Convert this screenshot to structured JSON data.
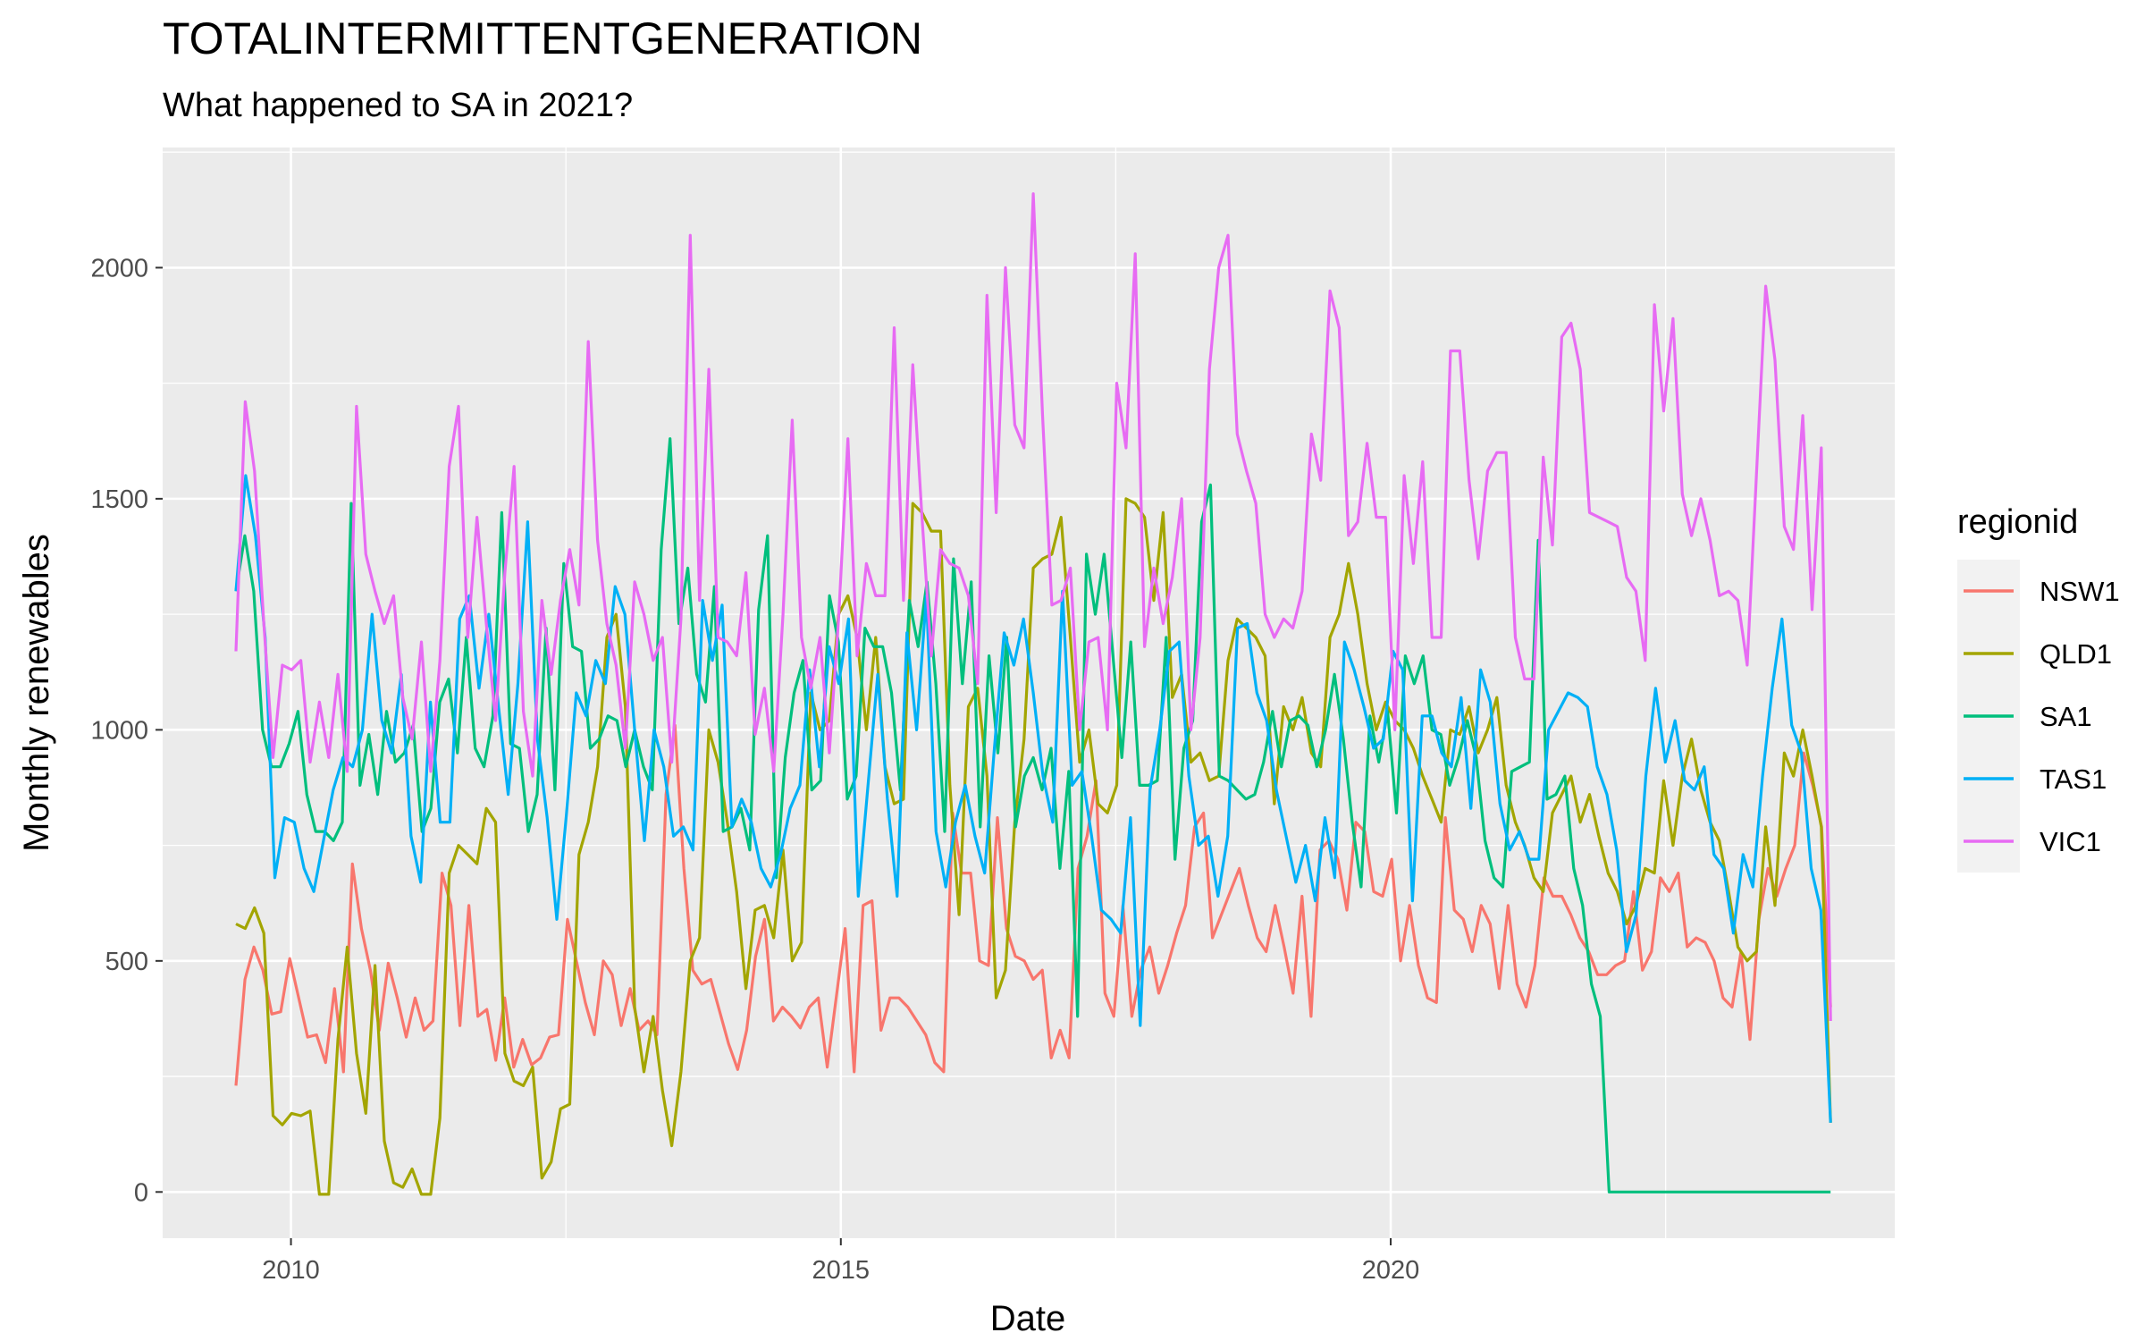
{
  "chart_data": {
    "type": "line",
    "title": "TOTALINTERMITTENTGENERATION",
    "subtitle": "What happened to SA in 2021?",
    "xlabel": "Date",
    "ylabel": "Monthly renewables",
    "xlim": [
      "2008-11",
      "2024-08"
    ],
    "ylim": [
      -100,
      2260
    ],
    "x_ticks": [
      {
        "value": "2010-01",
        "label": "2010"
      },
      {
        "value": "2015-01",
        "label": "2015"
      },
      {
        "value": "2020-01",
        "label": "2020"
      }
    ],
    "y_ticks": [
      0,
      500,
      1000,
      1500,
      2000
    ],
    "grid": true,
    "legend": {
      "title": "regionid",
      "position": "right"
    },
    "x_start": "2009-07",
    "x_end": "2024-01",
    "series": [
      {
        "name": "NSW1",
        "color": "#F8766D",
        "values": [
          230,
          460,
          530,
          480,
          385,
          390,
          505,
          420,
          335,
          340,
          280,
          440,
          260,
          710,
          570,
          480,
          350,
          495,
          420,
          335,
          420,
          350,
          370,
          690,
          620,
          360,
          620,
          380,
          395,
          285,
          420,
          270,
          330,
          275,
          290,
          335,
          340,
          590,
          500,
          410,
          340,
          500,
          470,
          360,
          440,
          350,
          370,
          340,
          860,
          1010,
          700,
          480,
          450,
          460,
          390,
          320,
          265,
          350,
          510,
          590,
          370,
          400,
          380,
          355,
          400,
          420,
          270,
          420,
          570,
          260,
          620,
          630,
          350,
          420,
          420,
          400,
          370,
          340,
          280,
          260,
          820,
          690,
          690,
          500,
          490,
          810,
          570,
          510,
          500,
          460,
          480,
          290,
          350,
          290,
          700,
          770,
          890,
          430,
          380,
          620,
          380,
          480,
          530,
          430,
          490,
          560,
          620,
          790,
          820,
          550,
          600,
          650,
          700,
          620,
          550,
          520,
          620,
          530,
          430,
          640,
          380,
          740,
          760,
          720,
          610,
          800,
          780,
          650,
          640,
          720,
          500,
          620,
          490,
          420,
          410,
          810,
          610,
          590,
          520,
          620,
          580,
          440,
          620,
          450,
          400,
          490,
          680,
          640,
          640,
          600,
          550,
          520,
          470,
          470,
          490,
          500,
          650,
          480,
          520,
          680,
          650,
          690,
          530,
          550,
          540,
          500,
          420,
          400,
          520,
          330,
          590,
          700,
          640,
          700,
          750,
          950,
          880,
          790,
          400
        ]
      },
      {
        "name": "QLD1",
        "color": "#A3A500",
        "values": [
          580,
          570,
          615,
          560,
          165,
          145,
          170,
          165,
          175,
          -5,
          -5,
          330,
          530,
          300,
          170,
          490,
          110,
          20,
          10,
          50,
          -5,
          -5,
          160,
          690,
          750,
          730,
          710,
          830,
          800,
          300,
          240,
          230,
          270,
          30,
          65,
          180,
          190,
          730,
          800,
          920,
          1200,
          1250,
          1050,
          400,
          260,
          380,
          220,
          100,
          260,
          500,
          550,
          1000,
          930,
          800,
          650,
          440,
          610,
          620,
          550,
          740,
          500,
          540,
          1080,
          1000,
          1020,
          1250,
          1290,
          1200,
          1000,
          1200,
          920,
          840,
          850,
          1490,
          1470,
          1430,
          1430,
          880,
          600,
          1050,
          1090,
          900,
          420,
          480,
          800,
          980,
          1350,
          1370,
          1380,
          1460,
          1200,
          930,
          1000,
          840,
          820,
          880,
          1500,
          1490,
          1460,
          1280,
          1470,
          1070,
          1120,
          930,
          950,
          890,
          900,
          1150,
          1240,
          1220,
          1200,
          1160,
          840,
          1050,
          1000,
          1070,
          950,
          920,
          1200,
          1250,
          1360,
          1250,
          1100,
          1000,
          1060,
          1020,
          1000,
          960,
          900,
          850,
          800,
          1000,
          990,
          1050,
          950,
          1000,
          1070,
          880,
          800,
          750,
          680,
          650,
          820,
          860,
          900,
          800,
          860,
          770,
          690,
          650,
          580,
          620,
          700,
          690,
          890,
          750,
          900,
          980,
          870,
          800,
          760,
          650,
          530,
          500,
          520,
          790,
          620,
          950,
          900,
          1000,
          900,
          790,
          150
        ]
      },
      {
        "name": "SA1",
        "color": "#00BF7D",
        "values": [
          1300,
          1420,
          1300,
          1000,
          920,
          920,
          970,
          1040,
          860,
          780,
          780,
          760,
          800,
          1490,
          880,
          990,
          860,
          1040,
          930,
          950,
          1010,
          780,
          830,
          1060,
          1110,
          950,
          1200,
          960,
          920,
          1030,
          1470,
          970,
          960,
          780,
          860,
          1220,
          870,
          1360,
          1180,
          1170,
          960,
          980,
          1030,
          1020,
          920,
          1000,
          920,
          870,
          1390,
          1630,
          1230,
          1350,
          1120,
          1060,
          1310,
          780,
          790,
          830,
          740,
          1260,
          1420,
          680,
          940,
          1080,
          1150,
          870,
          890,
          1290,
          1190,
          850,
          900,
          1220,
          1180,
          1180,
          1080,
          870,
          1280,
          1180,
          1320,
          1100,
          780,
          1370,
          1100,
          1320,
          790,
          1160,
          950,
          1200,
          790,
          900,
          940,
          870,
          960,
          700,
          910,
          380,
          1380,
          1250,
          1380,
          1160,
          940,
          1190,
          880,
          880,
          890,
          1200,
          720,
          960,
          1020,
          1450,
          1530,
          900,
          890,
          870,
          850,
          860,
          930,
          1040,
          920,
          1020,
          1030,
          1010,
          920,
          1000,
          1120,
          980,
          800,
          660,
          1030,
          930,
          1040,
          820,
          1160,
          1100,
          1160,
          1000,
          990,
          880,
          940,
          1020,
          940,
          760,
          680,
          660,
          910,
          920,
          930,
          1410,
          850,
          860,
          900,
          700,
          620,
          450,
          380,
          0,
          0,
          0,
          0,
          0,
          0,
          0,
          0,
          0,
          0,
          0,
          0,
          0,
          0,
          0,
          0,
          0,
          0,
          0,
          0,
          0,
          0,
          0,
          0,
          0,
          0
        ]
      },
      {
        "name": "TAS1",
        "color": "#00B0F6",
        "values": [
          1300,
          1550,
          1420,
          1200,
          680,
          810,
          800,
          700,
          650,
          760,
          870,
          940,
          920,
          1000,
          1250,
          1020,
          950,
          1120,
          770,
          670,
          1060,
          800,
          800,
          1240,
          1290,
          1090,
          1250,
          1050,
          860,
          1100,
          1450,
          980,
          810,
          590,
          820,
          1080,
          1030,
          1150,
          1100,
          1310,
          1250,
          1000,
          760,
          1000,
          920,
          770,
          790,
          740,
          1280,
          1150,
          1270,
          790,
          850,
          800,
          700,
          660,
          730,
          830,
          880,
          1130,
          920,
          1180,
          1100,
          1240,
          640,
          880,
          1120,
          850,
          640,
          1210,
          1000,
          1290,
          780,
          660,
          800,
          880,
          770,
          690,
          960,
          1210,
          1140,
          1240,
          1080,
          900,
          800,
          1300,
          880,
          910,
          770,
          610,
          590,
          560,
          810,
          360,
          870,
          1000,
          1170,
          1190,
          900,
          750,
          770,
          640,
          770,
          1220,
          1230,
          1080,
          1020,
          870,
          770,
          670,
          750,
          630,
          810,
          680,
          1190,
          1130,
          1050,
          960,
          980,
          1170,
          1130,
          630,
          1030,
          1030,
          950,
          920,
          1070,
          830,
          1130,
          1060,
          840,
          740,
          780,
          720,
          720,
          1000,
          1040,
          1080,
          1070,
          1050,
          920,
          860,
          740,
          520,
          600,
          900,
          1090,
          930,
          1020,
          890,
          870,
          920,
          730,
          700,
          560,
          730,
          660,
          900,
          1090,
          1240,
          1010,
          950,
          700,
          610,
          150
        ]
      },
      {
        "name": "VIC1",
        "color": "#E76BF3",
        "values": [
          1170,
          1710,
          1560,
          1230,
          940,
          1140,
          1130,
          1150,
          930,
          1060,
          940,
          1120,
          910,
          1700,
          1380,
          1300,
          1230,
          1290,
          1070,
          980,
          1190,
          910,
          1150,
          1570,
          1700,
          1200,
          1460,
          1230,
          1020,
          1340,
          1570,
          1040,
          900,
          1280,
          1120,
          1280,
          1390,
          1270,
          1840,
          1410,
          1230,
          1140,
          960,
          1320,
          1250,
          1150,
          1200,
          930,
          1240,
          2070,
          1280,
          1780,
          1200,
          1190,
          1160,
          1340,
          990,
          1090,
          910,
          1250,
          1670,
          1200,
          1090,
          1200,
          950,
          1240,
          1630,
          1160,
          1360,
          1290,
          1290,
          1870,
          1280,
          1790,
          1460,
          1160,
          1390,
          1360,
          1350,
          1290,
          1100,
          1940,
          1470,
          2000,
          1660,
          1610,
          2160,
          1680,
          1270,
          1280,
          1350,
          1000,
          1190,
          1200,
          1000,
          1750,
          1610,
          2030,
          1180,
          1350,
          1230,
          1330,
          1500,
          1000,
          1200,
          1780,
          2000,
          2070,
          1640,
          1560,
          1490,
          1250,
          1200,
          1240,
          1220,
          1300,
          1640,
          1540,
          1950,
          1870,
          1420,
          1450,
          1620,
          1460,
          1460,
          1000,
          1550,
          1360,
          1580,
          1200,
          1200,
          1820,
          1820,
          1540,
          1370,
          1560,
          1600,
          1600,
          1200,
          1110,
          1110,
          1590,
          1400,
          1850,
          1880,
          1780,
          1470,
          1460,
          1450,
          1440,
          1330,
          1300,
          1150,
          1920,
          1690,
          1890,
          1510,
          1420,
          1500,
          1410,
          1290,
          1300,
          1280,
          1140,
          1550,
          1960,
          1800,
          1440,
          1390,
          1680,
          1260,
          1610,
          370
        ]
      }
    ]
  }
}
